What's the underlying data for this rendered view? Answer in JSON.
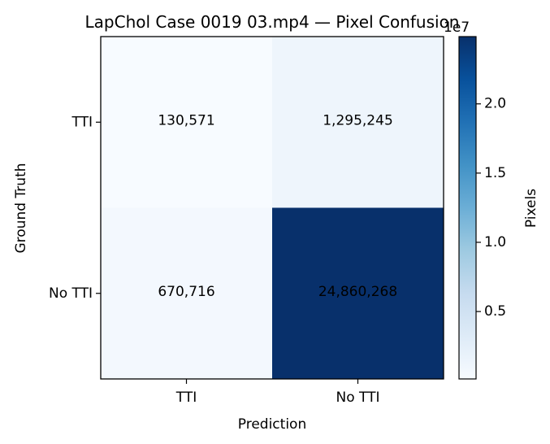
{
  "chart_data": {
    "type": "heatmap",
    "title": "LapChol Case 0019 03.mp4 — Pixel Confusion",
    "xlabel": "Prediction",
    "ylabel": "Ground Truth",
    "x_categories": [
      "TTI",
      "No TTI"
    ],
    "y_categories": [
      "TTI",
      "No TTI"
    ],
    "values": [
      [
        130571,
        1295245
      ],
      [
        670716,
        24860268
      ]
    ],
    "cell_labels": [
      [
        "130,571",
        "1,295,245"
      ],
      [
        "670,716",
        "24,860,268"
      ]
    ],
    "colormap": "Blues",
    "colorbar": {
      "label": "Pixels",
      "offset_text": "1e7",
      "range": [
        130571,
        24860268
      ],
      "ticks": [
        0.5,
        1.0,
        1.5,
        2.0
      ],
      "tick_labels": [
        "0.5",
        "1.0",
        "1.5",
        "2.0"
      ],
      "scale": 10000000
    }
  }
}
